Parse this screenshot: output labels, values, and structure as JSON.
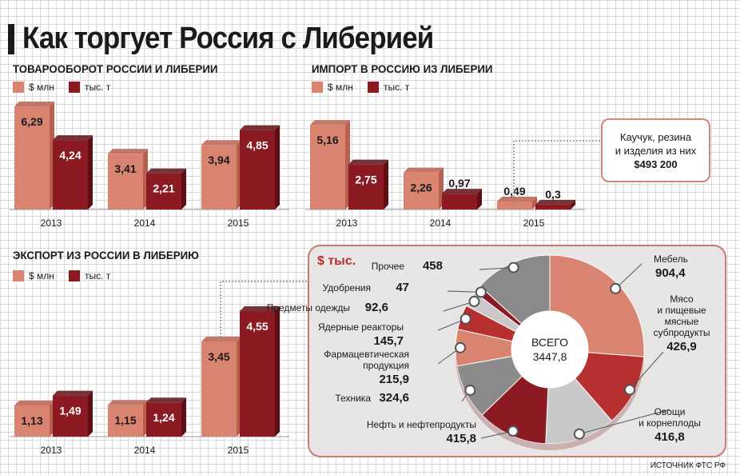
{
  "title": "Как торгует Россия с Либерией",
  "source": "ИСТОЧНИК ФТС РФ",
  "colors": {
    "usd": "#d88470",
    "tons": "#8c1a22",
    "usd_side": "#b86050",
    "tons_side": "#5e0f15"
  },
  "legend": {
    "usd": "$ млн",
    "tons": "тыс. т"
  },
  "callout": {
    "line1": "Каучук, резина",
    "line2": "и изделия из них",
    "amount": "$493 200"
  },
  "chart_data": [
    {
      "type": "bar",
      "title": "ТОВАРООБОРОТ РОССИИ И ЛИБЕРИИ",
      "categories": [
        "2013",
        "2014",
        "2015"
      ],
      "series": [
        {
          "name": "$ млн",
          "values": [
            6.29,
            3.41,
            3.94
          ],
          "labels": [
            "6,29",
            "3,41",
            "3,94"
          ]
        },
        {
          "name": "тыс. т",
          "values": [
            4.24,
            2.21,
            4.85
          ],
          "labels": [
            "4,24",
            "2,21",
            "4,85"
          ]
        }
      ]
    },
    {
      "type": "bar",
      "title": "ИМПОРТ В РОССИЮ ИЗ ЛИБЕРИИ",
      "categories": [
        "2013",
        "2014",
        "2015"
      ],
      "series": [
        {
          "name": "$ млн",
          "values": [
            5.16,
            2.26,
            0.49
          ],
          "labels": [
            "5,16",
            "2,26",
            "0,49"
          ]
        },
        {
          "name": "тыс. т",
          "values": [
            2.75,
            0.97,
            0.3
          ],
          "labels": [
            "2,75",
            "0,97",
            "0,3"
          ]
        }
      ]
    },
    {
      "type": "bar",
      "title": "ЭКСПОРТ ИЗ РОССИИ В ЛИБЕРИЮ",
      "categories": [
        "2013",
        "2014",
        "2015"
      ],
      "series": [
        {
          "name": "$ млн",
          "values": [
            1.13,
            1.15,
            3.45
          ],
          "labels": [
            "1,13",
            "1,15",
            "3,45"
          ]
        },
        {
          "name": "тыс. т",
          "values": [
            1.49,
            1.24,
            4.55
          ],
          "labels": [
            "1,49",
            "1,24",
            "4,55"
          ]
        }
      ]
    },
    {
      "type": "pie",
      "title": "$ тыс.",
      "center_label": "ВСЕГО",
      "total": "3447,8",
      "slices": [
        {
          "label": "Мебель",
          "value": 904.4,
          "value_label": "904,4",
          "color": "#d88470"
        },
        {
          "label": "Мясо и пищевые мясные субпродукты",
          "value": 426.9,
          "value_label": "426,9",
          "color": "#b5302e"
        },
        {
          "label": "Овощи и корнеплоды",
          "value": 416.8,
          "value_label": "416,8",
          "color": "#c9c9c9"
        },
        {
          "label": "Нефть и нефтепродукты",
          "value": 415.8,
          "value_label": "415,8",
          "color": "#8c1a22"
        },
        {
          "label": "Техника",
          "value": 324.6,
          "value_label": "324,6",
          "color": "#8a8a8a"
        },
        {
          "label": "Фармацевтическая продукция",
          "value": 215.9,
          "value_label": "215,9",
          "color": "#d88470"
        },
        {
          "label": "Ядерные реакторы",
          "value": 145.7,
          "value_label": "145,7",
          "color": "#b5302e"
        },
        {
          "label": "Предметы одежды",
          "value": 92.6,
          "value_label": "92,6",
          "color": "#c9c9c9"
        },
        {
          "label": "Удобрения",
          "value": 47,
          "value_label": "47",
          "color": "#8c1a22"
        },
        {
          "label": "Прочее",
          "value": 458,
          "value_label": "458",
          "color": "#8a8a8a"
        }
      ]
    }
  ]
}
